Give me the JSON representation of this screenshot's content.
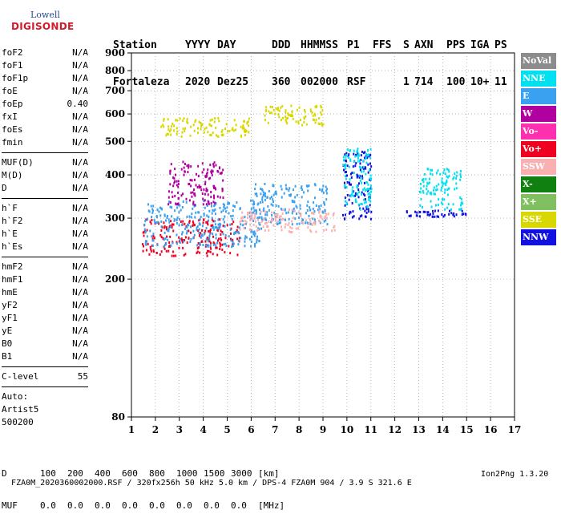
{
  "logo": {
    "line1": "Lowell",
    "line2": "DIGISONDE"
  },
  "header": {
    "labels": [
      "Station",
      "YYYY",
      "DAY",
      "DDD",
      "HHMMSS",
      "P1",
      "FFS",
      "S",
      "AXN",
      "PPS",
      "IGA",
      "PS"
    ],
    "values": [
      "Fortaleza",
      "2020",
      "Dez25",
      "360",
      "002000",
      "RSF",
      "",
      "1",
      "714",
      "100",
      "10+",
      "11"
    ]
  },
  "params_group1": [
    {
      "k": "foF2",
      "v": "N/A"
    },
    {
      "k": "foF1",
      "v": "N/A"
    },
    {
      "k": "foF1p",
      "v": "N/A"
    },
    {
      "k": "foE",
      "v": "N/A"
    },
    {
      "k": "foEp",
      "v": "0.40"
    },
    {
      "k": "fxI",
      "v": "N/A"
    },
    {
      "k": "foEs",
      "v": "N/A"
    },
    {
      "k": "fmin",
      "v": "N/A"
    }
  ],
  "params_group2": [
    {
      "k": "MUF(D)",
      "v": "N/A"
    },
    {
      "k": "M(D)",
      "v": "N/A"
    },
    {
      "k": "D",
      "v": "N/A"
    }
  ],
  "params_group3": [
    {
      "k": "h`F",
      "v": "N/A"
    },
    {
      "k": "h`F2",
      "v": "N/A"
    },
    {
      "k": "h`E",
      "v": "N/A"
    },
    {
      "k": "h`Es",
      "v": "N/A"
    }
  ],
  "params_group4": [
    {
      "k": "hmF2",
      "v": "N/A"
    },
    {
      "k": "hmF1",
      "v": "N/A"
    },
    {
      "k": "hmE",
      "v": "N/A"
    },
    {
      "k": "yF2",
      "v": "N/A"
    },
    {
      "k": "yF1",
      "v": "N/A"
    },
    {
      "k": "yE",
      "v": "N/A"
    },
    {
      "k": "B0",
      "v": "N/A"
    },
    {
      "k": "B1",
      "v": "N/A"
    }
  ],
  "clevel": {
    "k": "C-level",
    "v": "55"
  },
  "auto": [
    "Auto:",
    "Artist5",
    "500200"
  ],
  "legend": [
    {
      "label": "NoVal",
      "color": "#8c8c8c"
    },
    {
      "label": "NNE",
      "color": "#00e0f0"
    },
    {
      "label": "E",
      "color": "#3aa0f0"
    },
    {
      "label": "W",
      "color": "#b000a0"
    },
    {
      "label": "Vo-",
      "color": "#ff30b0"
    },
    {
      "label": "Vo+",
      "color": "#f00020"
    },
    {
      "label": "SSW",
      "color": "#f8b0b0"
    },
    {
      "label": "X-",
      "color": "#108010"
    },
    {
      "label": "X+",
      "color": "#80c060"
    },
    {
      "label": "SSE",
      "color": "#d8d800"
    },
    {
      "label": "NNW",
      "color": "#1010e0"
    }
  ],
  "bottom": {
    "d_label": "D",
    "d_values": [
      "100",
      "200",
      "400",
      "600",
      "800",
      "1000",
      "1500",
      "3000"
    ],
    "d_unit": "[km]",
    "muf_label": "MUF",
    "muf_values": [
      "0.0",
      "0.0",
      "0.0",
      "0.0",
      "0.0",
      "0.0",
      "0.0",
      "0.0"
    ],
    "muf_unit": "[MHz]"
  },
  "footer": {
    "left": "FZA0M_2020360002000.RSF / 320fx256h 50 kHz 5.0 km / DPS-4 FZA0M 904 / 3.9 S 321.6 E",
    "right": "Ion2Png 1.3.20"
  },
  "chart_data": {
    "type": "scatter",
    "xlabel": "",
    "ylabel": "",
    "xlim": [
      1,
      17
    ],
    "ylim": [
      80,
      900
    ],
    "x_ticks": [
      1,
      2,
      3,
      4,
      5,
      6,
      7,
      8,
      9,
      10,
      11,
      12,
      13,
      14,
      15,
      16,
      17
    ],
    "y_ticks": [
      80,
      200,
      300,
      400,
      500,
      600,
      700,
      800,
      900
    ],
    "y_scale": "log",
    "grid": "dotted",
    "clusters": [
      {
        "series": "Vo+",
        "x": [
          1.4,
          5.5
        ],
        "y": [
          235,
          300
        ]
      },
      {
        "series": "E",
        "x": [
          1.5,
          6.5
        ],
        "y": [
          250,
          340
        ]
      },
      {
        "series": "SSE",
        "x": [
          2.2,
          6.0
        ],
        "y": [
          520,
          590
        ]
      },
      {
        "series": "W",
        "x": [
          2.5,
          4.8
        ],
        "y": [
          330,
          440
        ]
      },
      {
        "series": "E",
        "x": [
          6.0,
          9.2
        ],
        "y": [
          290,
          380
        ]
      },
      {
        "series": "SSW",
        "x": [
          5.5,
          9.5
        ],
        "y": [
          275,
          320
        ]
      },
      {
        "series": "NNW",
        "x": [
          9.8,
          11.0
        ],
        "y": [
          300,
          470
        ]
      },
      {
        "series": "NNE",
        "x": [
          9.8,
          11.0
        ],
        "y": [
          320,
          480
        ]
      },
      {
        "series": "SSE",
        "x": [
          6.5,
          9.0
        ],
        "y": [
          560,
          640
        ]
      },
      {
        "series": "NNE",
        "x": [
          13.0,
          14.8
        ],
        "y": [
          320,
          420
        ]
      },
      {
        "series": "NNW",
        "x": [
          12.0,
          15.0
        ],
        "y": [
          305,
          318
        ]
      }
    ]
  }
}
